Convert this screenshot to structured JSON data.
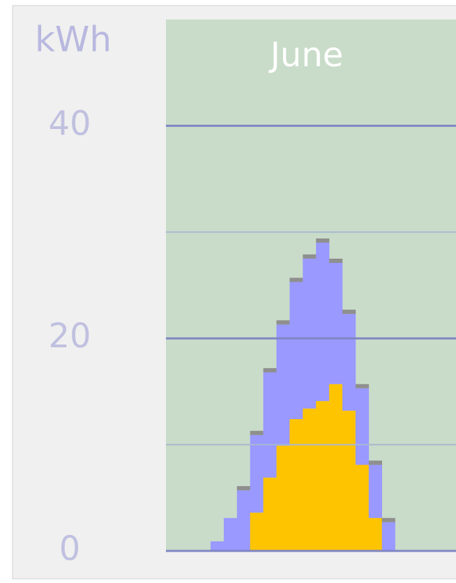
{
  "chart_data": {
    "type": "stacked-bar",
    "title": "June",
    "y_label": "kWh",
    "categories": [
      null,
      null,
      null,
      null,
      null,
      null,
      null,
      null,
      null,
      null,
      null,
      null,
      null,
      null
    ],
    "series": [
      {
        "color": "#ffc400",
        "values": [
          0,
          0,
          0,
          3.6,
          6.9,
          9.9,
          12.4,
          13.4,
          14.1,
          15.7,
          13.2,
          8.1,
          3.1,
          0
        ]
      },
      {
        "color": "#9999ff",
        "values": [
          0.9,
          3.1,
          5.7,
          7.3,
          9.9,
          11.4,
          12.9,
          14.1,
          14.9,
          11.4,
          9.1,
          7.2,
          5.0,
          2.7
        ]
      },
      {
        "color": "#8f8f8f",
        "values": [
          0,
          0,
          0.4,
          0.4,
          0.4,
          0.4,
          0.4,
          0.4,
          0.4,
          0.4,
          0.4,
          0.4,
          0.4,
          0.4
        ]
      }
    ],
    "ylim": [
      0,
      50
    ],
    "yticks": [
      0,
      20,
      40
    ],
    "minor_gridlines": [
      10,
      30
    ],
    "grid": true
  }
}
